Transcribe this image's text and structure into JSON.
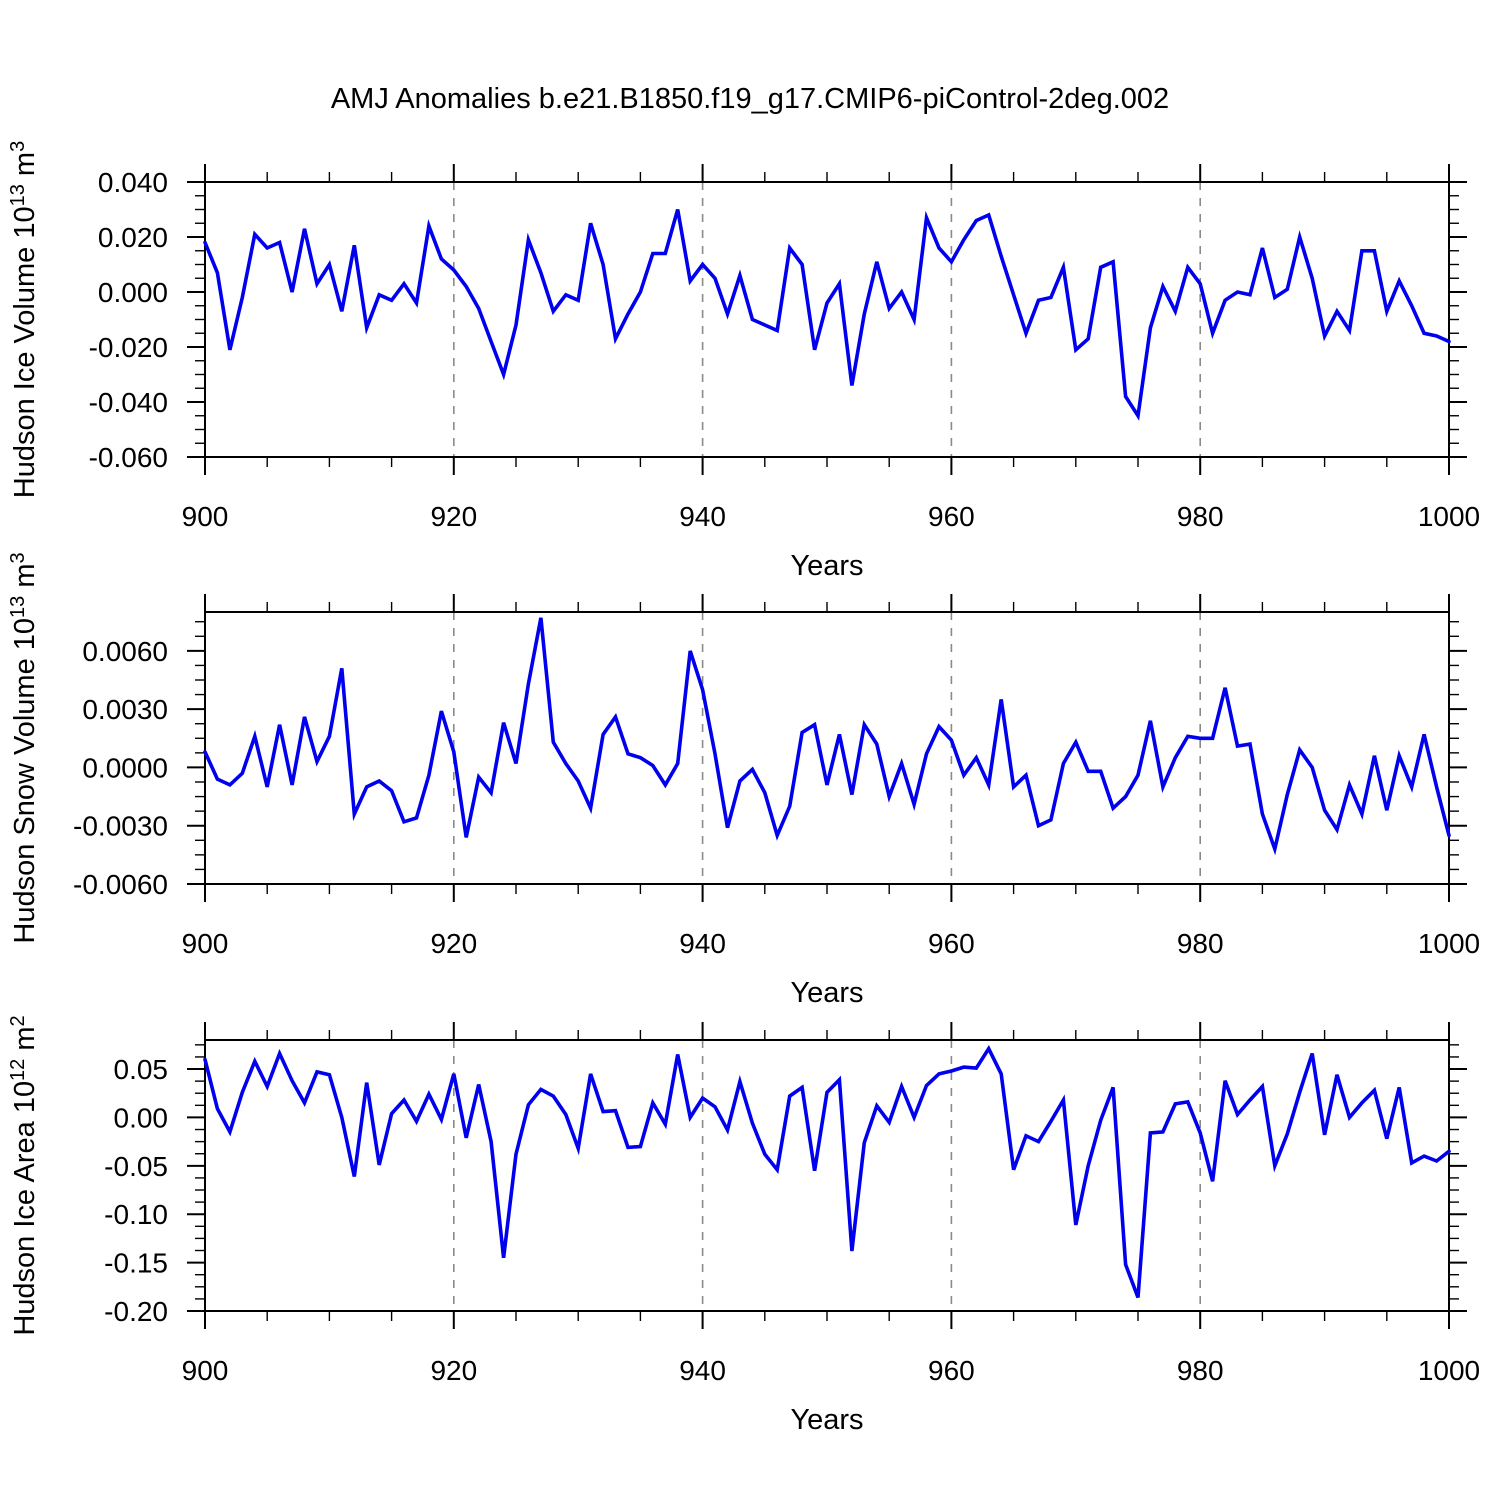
{
  "title": "AMJ Anomalies b.e21.B1850.f19_g17.CMIP6-piControl-2deg.002",
  "colors": {
    "line": "#0000EE",
    "frame": "#000000",
    "grid": "#8a8a8a",
    "text": "#000000",
    "background": "#ffffff"
  },
  "x_axis": {
    "label": "Years",
    "start": 900,
    "end": 1000,
    "major_ticks": [
      900,
      920,
      940,
      960,
      980,
      1000
    ],
    "major_tick_labels": [
      "900",
      "920",
      "940",
      "960",
      "980",
      "1000"
    ],
    "minor_step": 5,
    "gridline_years": [
      920,
      940,
      960,
      980
    ]
  },
  "years": [
    900,
    901,
    902,
    903,
    904,
    905,
    906,
    907,
    908,
    909,
    910,
    911,
    912,
    913,
    914,
    915,
    916,
    917,
    918,
    919,
    920,
    921,
    922,
    923,
    924,
    925,
    926,
    927,
    928,
    929,
    930,
    931,
    932,
    933,
    934,
    935,
    936,
    937,
    938,
    939,
    940,
    941,
    942,
    943,
    944,
    945,
    946,
    947,
    948,
    949,
    950,
    951,
    952,
    953,
    954,
    955,
    956,
    957,
    958,
    959,
    960,
    961,
    962,
    963,
    964,
    965,
    966,
    967,
    968,
    969,
    970,
    971,
    972,
    973,
    974,
    975,
    976,
    977,
    978,
    979,
    980,
    981,
    982,
    983,
    984,
    985,
    986,
    987,
    988,
    989,
    990,
    991,
    992,
    993,
    994,
    995,
    996,
    997,
    998,
    999,
    1000
  ],
  "chart_data": [
    {
      "type": "line",
      "name": "hudson-ice-volume",
      "ylabel_text": "Hudson Ice Volume 10^13 m^3",
      "ylabel_parts": [
        {
          "t": "Hudson Ice Volume 10",
          "sup": false
        },
        {
          "t": "13",
          "sup": true
        },
        {
          "t": " m",
          "sup": false
        },
        {
          "t": "3",
          "sup": true
        }
      ],
      "xlabel": "Years",
      "ylim": [
        -0.06,
        0.04
      ],
      "ytick_values": [
        0.04,
        0.02,
        0.0,
        -0.02,
        -0.04,
        -0.06
      ],
      "ytick_labels": [
        "0.040",
        "0.020",
        "0.000",
        "-0.020",
        "-0.040",
        "-0.060"
      ],
      "y_minor_step": 0.005,
      "values": [
        0.018,
        0.007,
        -0.021,
        -0.002,
        0.021,
        0.016,
        0.018,
        0.0,
        0.023,
        0.003,
        0.01,
        -0.007,
        0.017,
        -0.013,
        -0.001,
        -0.003,
        0.003,
        -0.004,
        0.024,
        0.012,
        0.008,
        0.002,
        -0.006,
        -0.018,
        -0.03,
        -0.012,
        0.019,
        0.007,
        -0.007,
        -0.001,
        -0.003,
        0.025,
        0.01,
        -0.017,
        -0.008,
        0.0,
        0.014,
        0.014,
        0.03,
        0.004,
        0.01,
        0.005,
        -0.008,
        0.006,
        -0.01,
        -0.012,
        -0.014,
        0.016,
        0.01,
        -0.021,
        -0.004,
        0.003,
        -0.034,
        -0.008,
        0.011,
        -0.006,
        0.0,
        -0.01,
        0.027,
        0.016,
        0.011,
        0.019,
        0.026,
        0.028,
        0.013,
        -0.001,
        -0.015,
        -0.003,
        -0.002,
        0.009,
        -0.021,
        -0.017,
        0.009,
        0.011,
        -0.038,
        -0.045,
        -0.013,
        0.002,
        -0.007,
        0.009,
        0.003,
        -0.015,
        -0.003,
        0.0,
        -0.001,
        0.016,
        -0.002,
        0.001,
        0.02,
        0.005,
        -0.016,
        -0.007,
        -0.014,
        0.015,
        0.015,
        -0.007,
        0.004,
        -0.005,
        -0.015,
        -0.016,
        -0.018
      ]
    },
    {
      "type": "line",
      "name": "hudson-snow-volume",
      "ylabel_text": "Hudson Snow Volume 10^13 m^3",
      "ylabel_parts": [
        {
          "t": "Hudson Snow Volume 10",
          "sup": false
        },
        {
          "t": "13",
          "sup": true
        },
        {
          "t": " m",
          "sup": false
        },
        {
          "t": "3",
          "sup": true
        }
      ],
      "xlabel": "Years",
      "ylim": [
        -0.006,
        0.008
      ],
      "ytick_values": [
        0.006,
        0.003,
        0.0,
        -0.003,
        -0.006
      ],
      "ytick_labels": [
        "0.0060",
        "0.0030",
        "0.0000",
        "-0.0030",
        "-0.0060"
      ],
      "y_minor_step": 0.00075,
      "values": [
        0.0008,
        -0.0006,
        -0.0009,
        -0.0003,
        0.0016,
        -0.001,
        0.0022,
        -0.0009,
        0.0026,
        0.0003,
        0.0016,
        0.0051,
        -0.0024,
        -0.001,
        -0.0007,
        -0.0012,
        -0.0028,
        -0.0026,
        -0.0004,
        0.0029,
        0.0008,
        -0.0036,
        -0.0005,
        -0.0013,
        0.0023,
        0.0002,
        0.0043,
        0.0077,
        0.0013,
        0.0002,
        -0.0007,
        -0.0021,
        0.0017,
        0.0026,
        0.0007,
        0.0005,
        0.0001,
        -0.0009,
        0.0002,
        0.006,
        0.004,
        0.0007,
        -0.0031,
        -0.0007,
        -0.0001,
        -0.0013,
        -0.0035,
        -0.002,
        0.0018,
        0.0022,
        -0.0009,
        0.0017,
        -0.0014,
        0.0022,
        0.0012,
        -0.0015,
        0.0002,
        -0.0019,
        0.0007,
        0.0021,
        0.0014,
        -0.0004,
        0.0005,
        -0.0009,
        0.0035,
        -0.001,
        -0.0004,
        -0.003,
        -0.0027,
        0.0002,
        0.0013,
        -0.0002,
        -0.0002,
        -0.0021,
        -0.0015,
        -0.0004,
        0.0024,
        -0.001,
        0.0005,
        0.0016,
        0.0015,
        0.0015,
        0.0041,
        0.0011,
        0.0012,
        -0.0024,
        -0.0042,
        -0.0014,
        0.0009,
        0.0,
        -0.0022,
        -0.0032,
        -0.0009,
        -0.0024,
        0.0006,
        -0.0022,
        0.0006,
        -0.001,
        0.0017,
        -0.001,
        -0.0035
      ]
    },
    {
      "type": "line",
      "name": "hudson-ice-area",
      "ylabel_text": "Hudson Ice Area 10^12 m^2",
      "ylabel_parts": [
        {
          "t": "Hudson Ice Area 10",
          "sup": false
        },
        {
          "t": "12",
          "sup": true
        },
        {
          "t": " m",
          "sup": false
        },
        {
          "t": "2",
          "sup": true
        }
      ],
      "xlabel": "Years",
      "ylim": [
        -0.2,
        0.08
      ],
      "ytick_values": [
        0.05,
        0.0,
        -0.05,
        -0.1,
        -0.15,
        -0.2
      ],
      "ytick_labels": [
        "0.05",
        "0.00",
        "-0.05",
        "-0.10",
        "-0.15",
        "-0.20"
      ],
      "y_minor_step": 0.0125,
      "values": [
        0.06,
        0.009,
        -0.015,
        0.026,
        0.058,
        0.032,
        0.066,
        0.038,
        0.015,
        0.047,
        0.044,
        0.0,
        -0.061,
        0.036,
        -0.049,
        0.004,
        0.018,
        -0.004,
        0.024,
        -0.002,
        0.045,
        -0.021,
        0.034,
        -0.025,
        -0.145,
        -0.038,
        0.013,
        0.029,
        0.022,
        0.003,
        -0.032,
        0.045,
        0.006,
        0.007,
        -0.031,
        -0.03,
        0.015,
        -0.007,
        0.065,
        0.0,
        0.02,
        0.011,
        -0.013,
        0.037,
        -0.006,
        -0.038,
        -0.054,
        0.022,
        0.031,
        -0.055,
        0.026,
        0.039,
        -0.138,
        -0.026,
        0.012,
        -0.005,
        0.032,
        0.0,
        0.033,
        0.045,
        0.048,
        0.052,
        0.051,
        0.071,
        0.045,
        -0.054,
        -0.019,
        -0.025,
        -0.004,
        0.018,
        -0.111,
        -0.05,
        -0.003,
        0.031,
        -0.152,
        -0.186,
        -0.016,
        -0.015,
        0.014,
        0.016,
        -0.016,
        -0.066,
        0.038,
        0.003,
        0.018,
        0.032,
        -0.05,
        -0.017,
        0.026,
        0.066,
        -0.018,
        0.044,
        0.0,
        0.015,
        0.028,
        -0.022,
        0.031,
        -0.047,
        -0.04,
        -0.045,
        -0.035
      ]
    }
  ]
}
